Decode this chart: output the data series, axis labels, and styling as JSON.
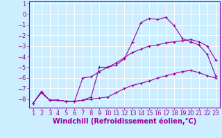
{
  "x_values": [
    1,
    2,
    3,
    4,
    5,
    6,
    7,
    8,
    9,
    10,
    11,
    12,
    13,
    14,
    15,
    16,
    17,
    18,
    19,
    20,
    21,
    22,
    23
  ],
  "line1": [
    -8.4,
    -7.3,
    -8.1,
    -8.1,
    -8.2,
    -8.2,
    -8.1,
    -7.8,
    -5.0,
    -5.0,
    -4.8,
    -4.2,
    -2.6,
    -0.8,
    -0.4,
    -0.5,
    -0.3,
    -1.1,
    -2.3,
    -2.6,
    -2.9,
    -3.8,
    -5.8
  ],
  "line2": [
    -8.4,
    -7.3,
    -8.1,
    -8.1,
    -8.2,
    -8.2,
    -6.0,
    -5.9,
    -5.4,
    -5.0,
    -4.6,
    -4.1,
    -3.6,
    -3.3,
    -3.0,
    -2.9,
    -2.7,
    -2.6,
    -2.5,
    -2.4,
    -2.6,
    -3.0,
    -4.3
  ],
  "line3": [
    -8.4,
    -7.4,
    -8.1,
    -8.1,
    -8.2,
    -8.2,
    -8.1,
    -8.0,
    -7.9,
    -7.8,
    -7.4,
    -7.0,
    -6.7,
    -6.5,
    -6.3,
    -6.0,
    -5.8,
    -5.6,
    -5.4,
    -5.3,
    -5.5,
    -5.8,
    -6.0
  ],
  "line_color": "#990099",
  "bg_color": "#cceeff",
  "grid_color": "#ffffff",
  "xlabel": "Windchill (Refroidissement éolien,°C)",
  "ylim": [
    -8.8,
    1.2
  ],
  "xlim": [
    0.5,
    23.5
  ],
  "yticks": [
    1,
    0,
    -1,
    -2,
    -3,
    -4,
    -5,
    -6,
    -7,
    -8
  ],
  "xticks": [
    1,
    2,
    3,
    4,
    5,
    6,
    7,
    8,
    9,
    10,
    11,
    12,
    13,
    14,
    15,
    16,
    17,
    18,
    19,
    20,
    21,
    22,
    23
  ],
  "label_color": "#990099",
  "tick_fontsize": 6.0,
  "xlabel_fontsize": 7.0
}
